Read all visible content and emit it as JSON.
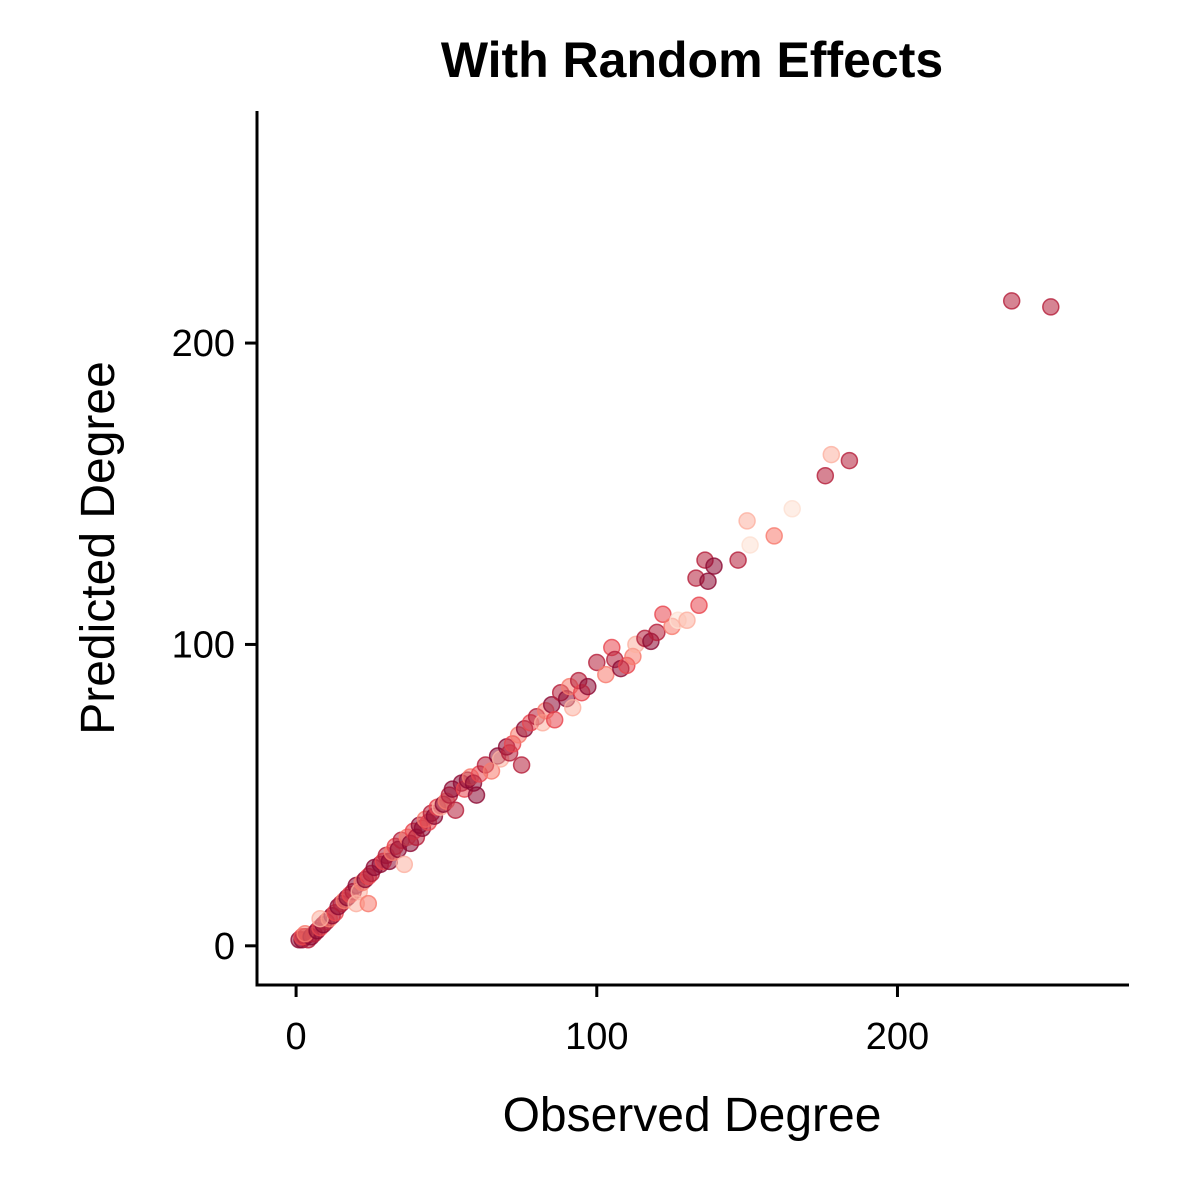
{
  "chart_data": {
    "type": "scatter",
    "title": "With Random Effects",
    "xlabel": "Observed Degree",
    "ylabel": "Predicted Degree",
    "xlim": [
      -13,
      277
    ],
    "ylim": [
      -13,
      277
    ],
    "xticks": [
      0,
      100,
      200
    ],
    "yticks": [
      0,
      100,
      200
    ],
    "grid": false,
    "legend": "none",
    "point_colors": [
      "#fde0d2",
      "#fcb0a0",
      "#f87a6e",
      "#e8454e",
      "#b51f3b",
      "#8c0a33"
    ],
    "points": [
      {
        "x": 1,
        "y": 2,
        "c": 5
      },
      {
        "x": 2,
        "y": 2,
        "c": 5
      },
      {
        "x": 3,
        "y": 3,
        "c": 5
      },
      {
        "x": 4,
        "y": 2,
        "c": 4
      },
      {
        "x": 2,
        "y": 3,
        "c": 3
      },
      {
        "x": 5,
        "y": 3,
        "c": 5
      },
      {
        "x": 6,
        "y": 4,
        "c": 4
      },
      {
        "x": 3,
        "y": 4,
        "c": 2
      },
      {
        "x": 7,
        "y": 5,
        "c": 5
      },
      {
        "x": 8,
        "y": 6,
        "c": 3
      },
      {
        "x": 9,
        "y": 7,
        "c": 5
      },
      {
        "x": 10,
        "y": 8,
        "c": 4
      },
      {
        "x": 11,
        "y": 9,
        "c": 2
      },
      {
        "x": 12,
        "y": 10,
        "c": 5
      },
      {
        "x": 8,
        "y": 9,
        "c": 1
      },
      {
        "x": 13,
        "y": 11,
        "c": 3
      },
      {
        "x": 14,
        "y": 13,
        "c": 5
      },
      {
        "x": 15,
        "y": 14,
        "c": 4
      },
      {
        "x": 16,
        "y": 15,
        "c": 2
      },
      {
        "x": 17,
        "y": 16,
        "c": 5
      },
      {
        "x": 18,
        "y": 17,
        "c": 3
      },
      {
        "x": 19,
        "y": 18,
        "c": 4
      },
      {
        "x": 20,
        "y": 20,
        "c": 5
      },
      {
        "x": 21,
        "y": 18,
        "c": 1
      },
      {
        "x": 22,
        "y": 21,
        "c": 2
      },
      {
        "x": 23,
        "y": 22,
        "c": 5
      },
      {
        "x": 24,
        "y": 23,
        "c": 3
      },
      {
        "x": 25,
        "y": 24,
        "c": 4
      },
      {
        "x": 26,
        "y": 26,
        "c": 5
      },
      {
        "x": 20,
        "y": 14,
        "c": 1
      },
      {
        "x": 24,
        "y": 14,
        "c": 2
      },
      {
        "x": 28,
        "y": 27,
        "c": 5
      },
      {
        "x": 29,
        "y": 28,
        "c": 3
      },
      {
        "x": 30,
        "y": 30,
        "c": 4
      },
      {
        "x": 31,
        "y": 28,
        "c": 5
      },
      {
        "x": 32,
        "y": 31,
        "c": 2
      },
      {
        "x": 33,
        "y": 33,
        "c": 3
      },
      {
        "x": 34,
        "y": 32,
        "c": 5
      },
      {
        "x": 35,
        "y": 35,
        "c": 4
      },
      {
        "x": 36,
        "y": 27,
        "c": 1
      },
      {
        "x": 37,
        "y": 36,
        "c": 2
      },
      {
        "x": 38,
        "y": 34,
        "c": 5
      },
      {
        "x": 39,
        "y": 38,
        "c": 3
      },
      {
        "x": 40,
        "y": 36,
        "c": 4
      },
      {
        "x": 41,
        "y": 40,
        "c": 5
      },
      {
        "x": 42,
        "y": 39,
        "c": 5
      },
      {
        "x": 43,
        "y": 42,
        "c": 2
      },
      {
        "x": 44,
        "y": 41,
        "c": 3
      },
      {
        "x": 45,
        "y": 44,
        "c": 4
      },
      {
        "x": 46,
        "y": 43,
        "c": 5
      },
      {
        "x": 47,
        "y": 46,
        "c": 3
      },
      {
        "x": 48,
        "y": 46,
        "c": 1
      },
      {
        "x": 49,
        "y": 47,
        "c": 5
      },
      {
        "x": 50,
        "y": 48,
        "c": 2
      },
      {
        "x": 51,
        "y": 50,
        "c": 4
      },
      {
        "x": 52,
        "y": 52,
        "c": 5
      },
      {
        "x": 53,
        "y": 45,
        "c": 4
      },
      {
        "x": 55,
        "y": 54,
        "c": 5
      },
      {
        "x": 56,
        "y": 52,
        "c": 3
      },
      {
        "x": 57,
        "y": 55,
        "c": 5
      },
      {
        "x": 58,
        "y": 56,
        "c": 2
      },
      {
        "x": 59,
        "y": 54,
        "c": 5
      },
      {
        "x": 60,
        "y": 50,
        "c": 5
      },
      {
        "x": 61,
        "y": 57,
        "c": 3
      },
      {
        "x": 63,
        "y": 60,
        "c": 4
      },
      {
        "x": 65,
        "y": 58,
        "c": 2
      },
      {
        "x": 67,
        "y": 63,
        "c": 5
      },
      {
        "x": 68,
        "y": 62,
        "c": 1
      },
      {
        "x": 70,
        "y": 66,
        "c": 5
      },
      {
        "x": 71,
        "y": 64,
        "c": 4
      },
      {
        "x": 72,
        "y": 67,
        "c": 3
      },
      {
        "x": 74,
        "y": 70,
        "c": 2
      },
      {
        "x": 75,
        "y": 60,
        "c": 4
      },
      {
        "x": 76,
        "y": 72,
        "c": 5
      },
      {
        "x": 78,
        "y": 74,
        "c": 3
      },
      {
        "x": 80,
        "y": 76,
        "c": 4
      },
      {
        "x": 82,
        "y": 74,
        "c": 1
      },
      {
        "x": 83,
        "y": 78,
        "c": 2
      },
      {
        "x": 85,
        "y": 80,
        "c": 5
      },
      {
        "x": 86,
        "y": 75,
        "c": 3
      },
      {
        "x": 88,
        "y": 84,
        "c": 4
      },
      {
        "x": 90,
        "y": 82,
        "c": 5
      },
      {
        "x": 91,
        "y": 86,
        "c": 2
      },
      {
        "x": 92,
        "y": 79,
        "c": 1
      },
      {
        "x": 94,
        "y": 88,
        "c": 4
      },
      {
        "x": 95,
        "y": 84,
        "c": 3
      },
      {
        "x": 97,
        "y": 86,
        "c": 5
      },
      {
        "x": 100,
        "y": 94,
        "c": 4
      },
      {
        "x": 103,
        "y": 90,
        "c": 2
      },
      {
        "x": 105,
        "y": 99,
        "c": 3
      },
      {
        "x": 106,
        "y": 95,
        "c": 4
      },
      {
        "x": 108,
        "y": 92,
        "c": 5
      },
      {
        "x": 110,
        "y": 93,
        "c": 3
      },
      {
        "x": 112,
        "y": 96,
        "c": 2
      },
      {
        "x": 113,
        "y": 100,
        "c": 1
      },
      {
        "x": 116,
        "y": 102,
        "c": 4
      },
      {
        "x": 118,
        "y": 101,
        "c": 5
      },
      {
        "x": 120,
        "y": 104,
        "c": 4
      },
      {
        "x": 122,
        "y": 110,
        "c": 3
      },
      {
        "x": 125,
        "y": 106,
        "c": 2
      },
      {
        "x": 127,
        "y": 108,
        "c": 0
      },
      {
        "x": 130,
        "y": 108,
        "c": 1
      },
      {
        "x": 134,
        "y": 113,
        "c": 3
      },
      {
        "x": 133,
        "y": 122,
        "c": 4
      },
      {
        "x": 136,
        "y": 128,
        "c": 4
      },
      {
        "x": 137,
        "y": 121,
        "c": 5
      },
      {
        "x": 139,
        "y": 126,
        "c": 5
      },
      {
        "x": 147,
        "y": 128,
        "c": 4
      },
      {
        "x": 150,
        "y": 141,
        "c": 1
      },
      {
        "x": 151,
        "y": 133,
        "c": 0
      },
      {
        "x": 159,
        "y": 136,
        "c": 2
      },
      {
        "x": 165,
        "y": 145,
        "c": 0
      },
      {
        "x": 176,
        "y": 156,
        "c": 4
      },
      {
        "x": 178,
        "y": 163,
        "c": 1
      },
      {
        "x": 184,
        "y": 161,
        "c": 4
      },
      {
        "x": 238,
        "y": 214,
        "c": 4
      },
      {
        "x": 251,
        "y": 212,
        "c": 4
      }
    ]
  }
}
